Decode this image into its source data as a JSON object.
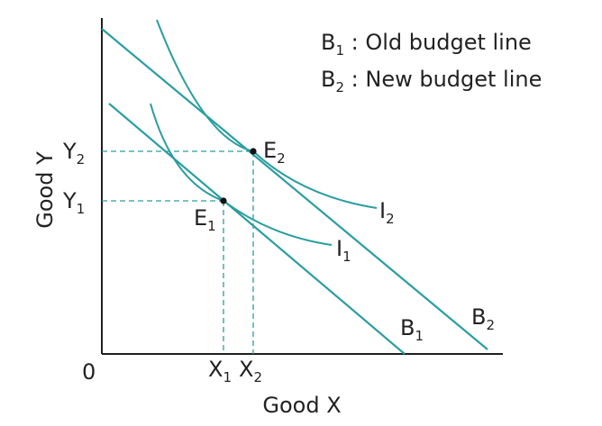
{
  "colors": {
    "curve": "#2a9d9f",
    "axis": "#1f1f1f",
    "guide": "#2a9d9f",
    "point": "#111111",
    "text": "#222222"
  },
  "legend": {
    "b1": {
      "main": "B",
      "sub": "1",
      "rest": " : Old budget line"
    },
    "b2": {
      "main": "B",
      "sub": "2",
      "rest": " : New budget line"
    }
  },
  "axes": {
    "origin": "0",
    "x_title": "Good X",
    "y_title": "Good Y"
  },
  "ticks": {
    "x1": {
      "main": "X",
      "sub": "1"
    },
    "x2": {
      "main": "X",
      "sub": "2"
    },
    "y1": {
      "main": "Y",
      "sub": "1"
    },
    "y2": {
      "main": "Y",
      "sub": "2"
    }
  },
  "points": {
    "e1": {
      "main": "E",
      "sub": "1"
    },
    "e2": {
      "main": "E",
      "sub": "2"
    }
  },
  "curves": {
    "i1": {
      "main": "I",
      "sub": "1"
    },
    "i2": {
      "main": "I",
      "sub": "2"
    },
    "b1": {
      "main": "B",
      "sub": "1"
    },
    "b2": {
      "main": "B",
      "sub": "2"
    }
  }
}
